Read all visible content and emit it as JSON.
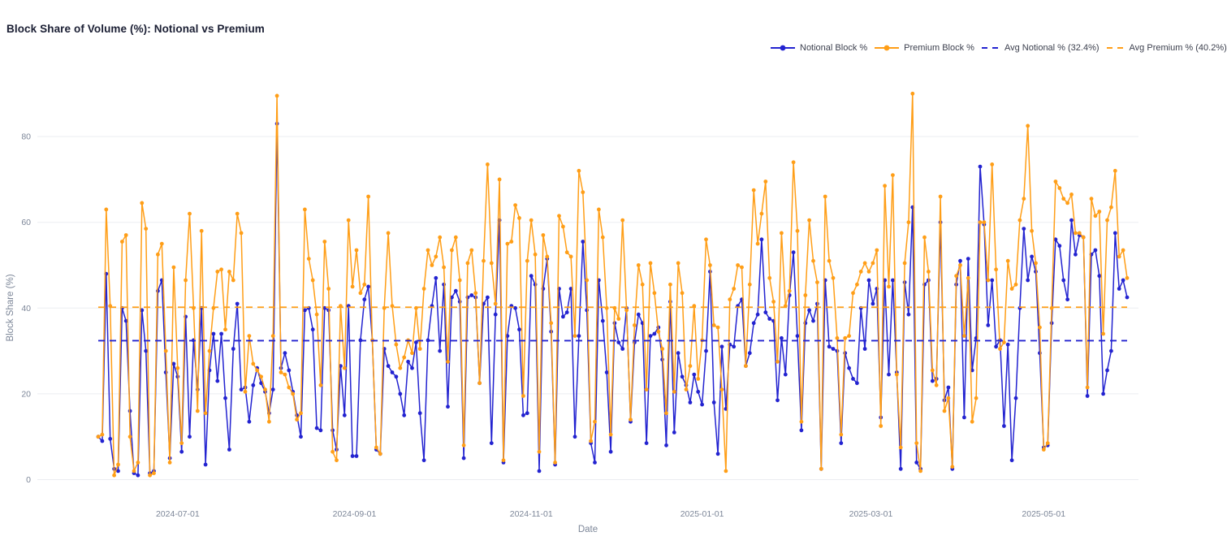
{
  "title": "Block Share of Volume (%): Notional vs Premium",
  "colors": {
    "notional": "#2323d0",
    "premium": "#ff9e17",
    "grid": "#ebedf1",
    "tick_text": "#7c8698",
    "title_text": "#1a1e33"
  },
  "legend": [
    {
      "label": "Notional Block %",
      "type": "line-marker",
      "series": "notional"
    },
    {
      "label": "Premium Block %",
      "type": "line-marker",
      "series": "premium"
    },
    {
      "label": "Avg Notional % (32.4%)",
      "type": "dash",
      "series": "notional"
    },
    {
      "label": "Avg Premium % (40.2%)",
      "type": "dash",
      "series": "premium"
    }
  ],
  "chart_data": {
    "type": "line",
    "title": "Block Share of Volume (%): Notional vs Premium",
    "xlabel": "Date",
    "ylabel": "Block Share (%)",
    "ylim": [
      0,
      95
    ],
    "yticks": [
      0,
      20,
      40,
      60,
      80
    ],
    "grid": true,
    "legend_position": "top-right",
    "x_ticks": [
      {
        "label": "2024-07-01",
        "pos": 20
      },
      {
        "label": "2024-09-01",
        "pos": 64.5
      },
      {
        "label": "2024-11-01",
        "pos": 109
      },
      {
        "label": "2025-01-01",
        "pos": 152
      },
      {
        "label": "2025-03-01",
        "pos": 194.5
      },
      {
        "label": "2025-05-01",
        "pos": 238
      }
    ],
    "avg_lines": [
      {
        "label": "Avg Notional % (32.4%)",
        "value": 32.4,
        "series": "notional"
      },
      {
        "label": "Avg Premium % (40.2%)",
        "value": 40.2,
        "series": "premium"
      }
    ],
    "series": [
      {
        "name": "Notional Block %",
        "series": "notional",
        "values": [
          10,
          9,
          48,
          9.5,
          2.5,
          2,
          40,
          37,
          16,
          1.5,
          1,
          39.5,
          30,
          1.5,
          2,
          44,
          46.5,
          25,
          5,
          27,
          24,
          6.5,
          38,
          10,
          32.5,
          21,
          40,
          3.5,
          25.5,
          34,
          23,
          34,
          19,
          7,
          30.5,
          41,
          21,
          21.5,
          13.5,
          22,
          26,
          22.5,
          20.5,
          15.5,
          21,
          83,
          26,
          29.5,
          25.5,
          20.5,
          15,
          10,
          39.5,
          40,
          35,
          12,
          11.5,
          40,
          39.5,
          11.5,
          7,
          26.5,
          15,
          40.5,
          5.5,
          5.5,
          32.5,
          42,
          45,
          32.5,
          7,
          6,
          30.5,
          26.5,
          25,
          24,
          20,
          15,
          27.5,
          26,
          32,
          15.5,
          4.5,
          32.5,
          40.5,
          47,
          30,
          45.5,
          17,
          42.5,
          44,
          41.5,
          5,
          42.5,
          43,
          42.5,
          22.5,
          41,
          42.5,
          8.5,
          38.5,
          60.5,
          4,
          33.5,
          40.5,
          40,
          35,
          15,
          15.5,
          47.5,
          45.5,
          2,
          44.5,
          51.5,
          34.5,
          3.5,
          44.5,
          38,
          39,
          44.5,
          10,
          33.5,
          55.5,
          39.5,
          8.5,
          4,
          46.5,
          37,
          25,
          6.5,
          36.5,
          32,
          30.5,
          40,
          13.5,
          32,
          38.5,
          36.5,
          8.5,
          33.5,
          34,
          35.5,
          28,
          8,
          41.5,
          11,
          29.5,
          24,
          22,
          18,
          24.5,
          20.5,
          17.5,
          30,
          48.5,
          18,
          6,
          31,
          16.5,
          31.5,
          31,
          40.5,
          42,
          26.5,
          29.5,
          36.5,
          38.5,
          56,
          39,
          37.5,
          37,
          18.5,
          33,
          24.5,
          43,
          53,
          33.5,
          11.5,
          36.5,
          39.5,
          37,
          41,
          2.5,
          46.5,
          31,
          30.5,
          30,
          8.5,
          29.5,
          26,
          23.5,
          22.5,
          40,
          30.5,
          46.5,
          41,
          44.5,
          14.5,
          46.5,
          24.5,
          46.5,
          25,
          2.5,
          46,
          38.5,
          63.5,
          4,
          2.5,
          45.5,
          46.5,
          23,
          23.5,
          60,
          18.5,
          21.5,
          2.5,
          45.5,
          51,
          14.5,
          51.5,
          25.5,
          33,
          73,
          59.5,
          36,
          46.5,
          31,
          32.5,
          12.5,
          31.5,
          4.5,
          19,
          40,
          58.5,
          46.5,
          52,
          48.5,
          29.5,
          7.5,
          8,
          36.5,
          56,
          54.5,
          46.5,
          42,
          60.5,
          52.5,
          57,
          56.5,
          19.5,
          52.5,
          53.5,
          47.5,
          20,
          25.5,
          30,
          57.5,
          44.5,
          46.5,
          42.5
        ]
      },
      {
        "name": "Premium Block %",
        "series": "premium",
        "values": [
          10,
          10.5,
          63,
          40.5,
          1,
          3.5,
          55.5,
          57,
          10,
          2,
          4,
          64.5,
          58.5,
          1,
          1.5,
          52.5,
          55,
          30,
          4,
          49.5,
          26,
          8.5,
          46.5,
          62,
          40,
          16,
          58,
          15.5,
          30,
          40,
          48.5,
          49,
          35,
          48.5,
          46.5,
          62,
          57.5,
          20.5,
          33.5,
          27,
          25.5,
          24,
          21,
          13.5,
          33.5,
          89.5,
          25,
          24.5,
          21.5,
          20,
          14,
          15.5,
          63,
          51.5,
          46.5,
          38.5,
          22,
          55.5,
          44.5,
          6.5,
          4.5,
          40.5,
          26,
          60.5,
          45,
          53.5,
          43.5,
          45.5,
          66,
          32.5,
          7.5,
          6,
          40,
          57.5,
          40.5,
          31.5,
          26,
          28.5,
          32.5,
          29.5,
          40,
          30.5,
          44.5,
          53.5,
          50,
          52,
          56.5,
          49.5,
          27.5,
          53.5,
          56.5,
          46.5,
          8,
          50.5,
          53.5,
          43.5,
          22.5,
          51,
          73.5,
          50.5,
          41,
          70,
          4.5,
          55,
          55.5,
          64,
          61,
          19.5,
          51,
          60.5,
          52.5,
          6.5,
          57,
          52,
          36.5,
          4,
          61.5,
          59,
          53,
          52,
          33.5,
          72,
          67,
          46.5,
          9,
          13.5,
          63,
          56.5,
          40,
          10.5,
          40,
          37.5,
          60.5,
          39.5,
          14,
          36,
          50,
          45.5,
          21,
          50.5,
          43.5,
          34.5,
          30.5,
          15.5,
          45.5,
          20.5,
          50.5,
          43.5,
          21,
          26.5,
          40.5,
          23.5,
          32.5,
          56,
          50,
          36,
          35.5,
          21,
          2,
          42,
          44.5,
          50,
          49.5,
          26.5,
          45.5,
          67.5,
          55,
          62,
          69.5,
          47,
          41.5,
          27.5,
          57.5,
          40.5,
          44,
          74,
          58,
          13.5,
          43,
          60.5,
          51,
          46,
          2.5,
          66,
          51,
          47,
          33,
          10.5,
          33,
          33.5,
          43.5,
          45.5,
          48.5,
          50.5,
          48.5,
          50.5,
          53.5,
          12.5,
          68.5,
          45,
          71,
          24.5,
          7.5,
          50.5,
          60,
          90,
          8.5,
          2,
          56.5,
          48.5,
          25.5,
          22,
          66,
          16,
          19,
          3,
          47.5,
          50,
          33.5,
          47,
          13.5,
          19,
          60,
          60,
          46.5,
          73.5,
          49,
          30.5,
          32,
          51,
          44.5,
          45.5,
          60.5,
          65.5,
          82.5,
          58,
          50.5,
          35.5,
          7,
          8.5,
          40,
          69.5,
          68,
          65.5,
          64.5,
          66.5,
          57.5,
          57.5,
          56.5,
          21.5,
          65.5,
          61.5,
          62.5,
          34,
          60.5,
          63.5,
          72,
          52,
          53.5,
          47
        ]
      }
    ]
  }
}
